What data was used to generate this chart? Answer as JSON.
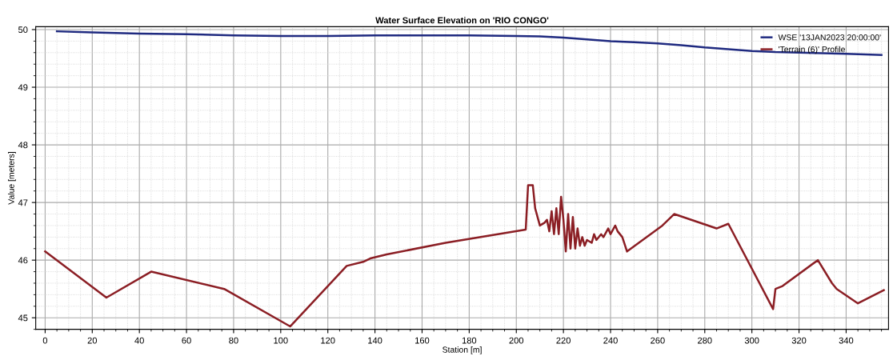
{
  "chart_data": {
    "type": "line",
    "title": "Water Surface Elevation on 'RIO CONGO'",
    "xlabel": "Station [m]",
    "ylabel": "Value [meters]",
    "xlim": [
      -4,
      358
    ],
    "xticks": [
      0,
      20,
      40,
      60,
      80,
      100,
      120,
      140,
      160,
      180,
      200,
      220,
      240,
      260,
      280,
      300,
      320,
      340
    ],
    "ylim": [
      44.8,
      50.05
    ],
    "yticks": [
      45,
      46,
      47,
      48,
      49,
      50
    ],
    "grid": true,
    "legend": "top right",
    "marker": "none",
    "line_style": "solid",
    "series": [
      {
        "name": "WSE '13JAN2023 20:00:00'",
        "color": "#1f2a80",
        "x": [
          5,
          20,
          40,
          60,
          80,
          100,
          120,
          140,
          160,
          180,
          200,
          210,
          220,
          230,
          240,
          250,
          260,
          270,
          280,
          290,
          300,
          310,
          320,
          330,
          340,
          355
        ],
        "values": [
          49.97,
          49.95,
          49.93,
          49.92,
          49.9,
          49.89,
          49.89,
          49.9,
          49.9,
          49.9,
          49.89,
          49.88,
          49.86,
          49.83,
          49.8,
          49.78,
          49.76,
          49.73,
          49.69,
          49.66,
          49.63,
          49.61,
          49.6,
          49.59,
          49.58,
          49.56
        ]
      },
      {
        "name": "'Terrain (6)' Profile",
        "color": "#8b1e24",
        "x": [
          0,
          26,
          45,
          76,
          104,
          128,
          135,
          138,
          145,
          170,
          204,
          205,
          207,
          208,
          210,
          212,
          213,
          214,
          215,
          216,
          217,
          218,
          219,
          220,
          221,
          222,
          223,
          224,
          225,
          226,
          227,
          228,
          229,
          230,
          232,
          233,
          234,
          236,
          237,
          239,
          240,
          242,
          243,
          245,
          247,
          262,
          267,
          285,
          290,
          309,
          310,
          313,
          328,
          334,
          336,
          345,
          356
        ],
        "values": [
          46.15,
          45.35,
          45.8,
          45.5,
          44.85,
          45.9,
          45.97,
          46.03,
          46.1,
          46.3,
          46.53,
          47.3,
          47.3,
          46.9,
          46.6,
          46.65,
          46.7,
          46.5,
          46.85,
          46.45,
          46.9,
          46.45,
          47.1,
          46.7,
          46.15,
          46.8,
          46.2,
          46.75,
          46.2,
          46.55,
          46.25,
          46.4,
          46.25,
          46.35,
          46.3,
          46.45,
          46.35,
          46.45,
          46.4,
          46.55,
          46.45,
          46.6,
          46.5,
          46.4,
          46.15,
          46.6,
          46.8,
          46.55,
          46.63,
          45.15,
          45.5,
          45.55,
          46.0,
          45.6,
          45.5,
          45.25,
          45.48
        ]
      }
    ]
  }
}
